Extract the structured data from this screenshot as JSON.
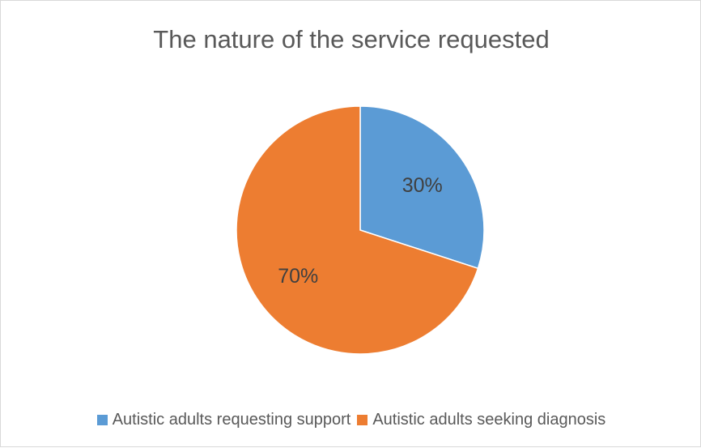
{
  "chart_data": {
    "type": "pie",
    "title": "The nature of the service requested",
    "series": [
      {
        "name": "Autistic adults requesting support",
        "value": 30,
        "label": "30%",
        "color": "#5b9bd5"
      },
      {
        "name": "Autistic adults seeking diagnosis",
        "value": 70,
        "label": "70%",
        "color": "#ed7d31"
      }
    ],
    "legend_position": "bottom"
  }
}
